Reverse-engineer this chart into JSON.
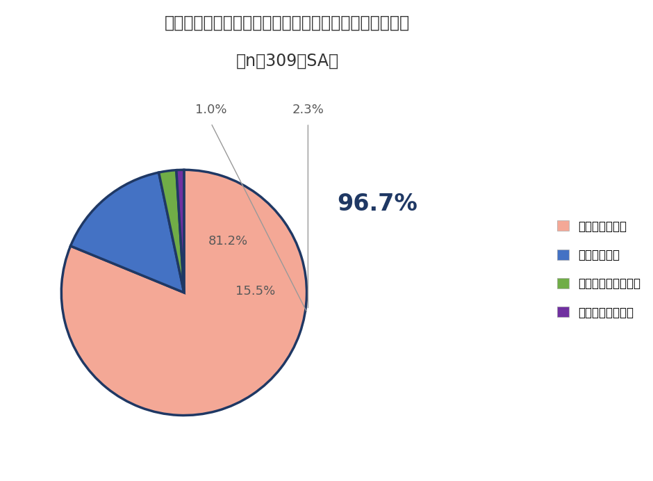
{
  "title": "子どもの職業選択は本人の好きにさせたいと思いますか",
  "subtitle": "（n＝309、SA）",
  "slices": [
    81.2,
    15.5,
    2.3,
    1.0
  ],
  "labels": [
    "とてもそう思う",
    "少しそう思う",
    "あまりそう思わない",
    "全くそう思わない"
  ],
  "colors": [
    "#F4A896",
    "#4472C4",
    "#70AD47",
    "#7030A0"
  ],
  "edge_color": "#1F3864",
  "edge_width": 2.5,
  "pct_labels": [
    "81.2%",
    "15.5%",
    "2.3%",
    "1.0%"
  ],
  "highlight_label": "96.7%",
  "highlight_color": "#1F3864",
  "background_color": "#ffffff",
  "title_fontsize": 17,
  "subtitle_fontsize": 17,
  "legend_fontsize": 12,
  "pct_fontsize": 13,
  "highlight_fontsize": 24,
  "startangle": 90,
  "label_color": "#595959"
}
